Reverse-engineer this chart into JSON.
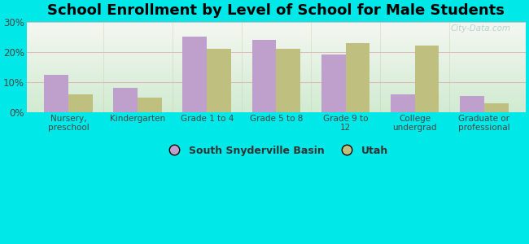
{
  "title": "School Enrollment by Level of School for Male Students",
  "categories": [
    "Nursery,\npreschool",
    "Kindergarten",
    "Grade 1 to 4",
    "Grade 5 to 8",
    "Grade 9 to\n12",
    "College\nundergrad",
    "Graduate or\nprofessional"
  ],
  "series": [
    {
      "name": "South Snyderville Basin",
      "values": [
        12.3,
        8.0,
        25.0,
        24.0,
        19.0,
        6.0,
        5.5
      ],
      "color": "#bf9fcc"
    },
    {
      "name": "Utah",
      "values": [
        6.0,
        5.0,
        21.0,
        21.0,
        23.0,
        22.0,
        3.0
      ],
      "color": "#bfbf80"
    }
  ],
  "ylim": [
    0,
    30
  ],
  "yticks": [
    0,
    10,
    20,
    30
  ],
  "ytick_labels": [
    "0%",
    "10%",
    "20%",
    "30%"
  ],
  "background_color": "#00e8e8",
  "plot_bg_top": "#f5f5ee",
  "plot_bg_bottom": "#d8ecd8",
  "title_fontsize": 13,
  "bar_width": 0.35,
  "watermark": "City-Data.com"
}
